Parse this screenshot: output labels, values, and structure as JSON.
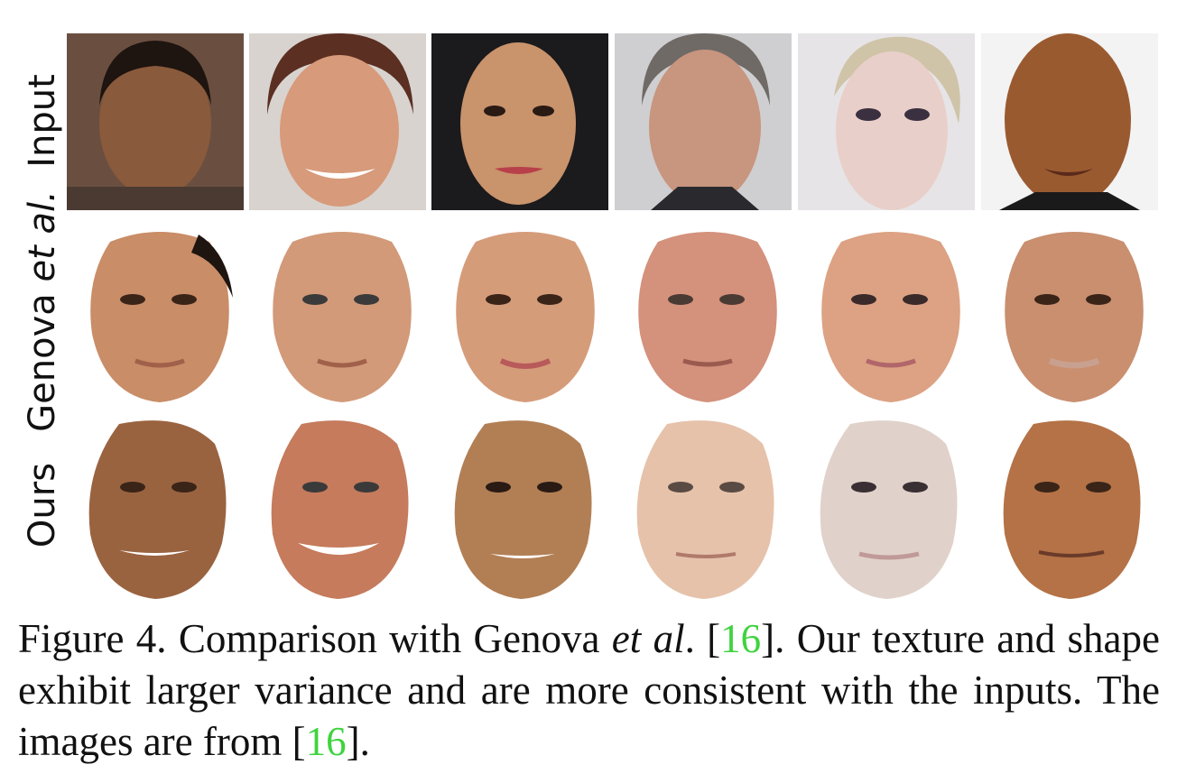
{
  "row_labels": {
    "input": "Input",
    "genova_prefix": "Genova ",
    "genova_italic": "et al.",
    "ours": "Ours"
  },
  "caption": {
    "figure_label": "Figure 4.",
    "part1": " Comparison with Genova ",
    "et_al": "et al",
    "part2": ". [",
    "cite1": "16",
    "part3": "].  Our texture and shape exhibit larger variance and are more consistent with the inputs. The images are from [",
    "cite2": "16",
    "part4": "]."
  },
  "colors": {
    "citation": "#3fd33f",
    "input_backgrounds": [
      "#6a4f40",
      "#d8d3cf",
      "#1b1a1c",
      "#cfcfd1",
      "#e6e4e6",
      "#f3f3f3"
    ],
    "input_skin": [
      "#8a5a3c",
      "#d79a7a",
      "#c9936c",
      "#c8957f",
      "#e9cfc9",
      "#9a5a30"
    ],
    "genova_skin": [
      "#c98d67",
      "#d29a79",
      "#d59c7a",
      "#d4917c",
      "#dca283",
      "#c98f6f"
    ],
    "ours_skin": [
      "#9a6340",
      "#c57b5c",
      "#b27f55",
      "#e6c2aa",
      "#e0d2ca",
      "#b47246"
    ]
  }
}
